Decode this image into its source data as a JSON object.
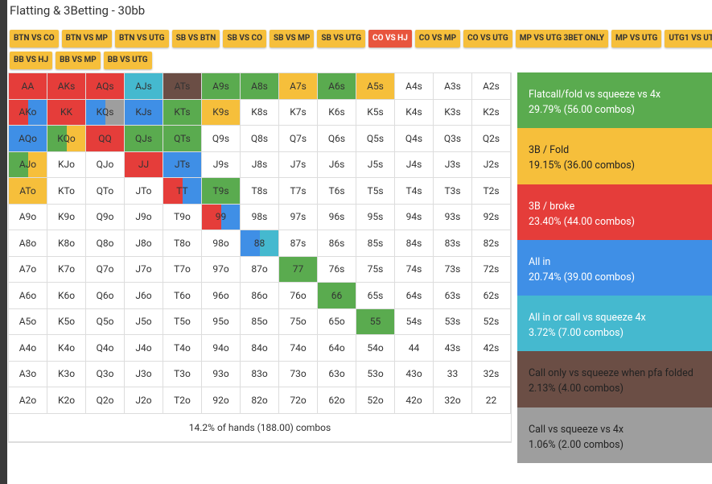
{
  "header": {
    "title": "Flatting & 3Betting - 30bb"
  },
  "tabs": {
    "active": 7,
    "rows": [
      [
        "BTN VS CO",
        "BTN VS MP",
        "BTN VS UTG",
        "SB VS BTN",
        "SB VS CO",
        "SB VS MP",
        "SB VS UTG",
        "CO VS HJ",
        "CO VS MP",
        "CO VS UTG",
        "MP VS UTG 3BET ONLY",
        "MP VS UTG",
        "UTG1 VS UTG"
      ],
      [
        "BB VS HJ",
        "BB VS MP",
        "BB VS UTG"
      ]
    ]
  },
  "legend": [
    {
      "name": "Flatcall/fold vs squeeze vs 4x",
      "stat": "29.79% (56.00 combos)",
      "color": "#5aab4f"
    },
    {
      "name": "3B / Fold",
      "stat": "19.15% (36.00 combos)",
      "color": "#f6bf3b"
    },
    {
      "name": "3B / broke",
      "stat": "23.40% (44.00 combos)",
      "color": "#e53d3a"
    },
    {
      "name": "All in",
      "stat": "20.74% (39.00 combos)",
      "color": "#3f8fe6"
    },
    {
      "name": "All in or call vs squeeze 4x",
      "stat": "3.72% (7.00 combos)",
      "color": "#45b9cf"
    },
    {
      "name": "Call only vs squeeze when pfa folded",
      "stat": "2.13% (4.00 combos)",
      "color": "#6b4e45"
    },
    {
      "name": "Call vs squeeze vs 4x",
      "stat": "1.06% (2.00 combos)",
      "color": "#9e9e9e"
    }
  ],
  "grid": {
    "footer": "14.2% of hands (188.00) combos",
    "cells": [
      [
        {
          "label": "AA",
          "fill": [
            2
          ]
        },
        {
          "label": "AKs",
          "fill": [
            2
          ]
        },
        {
          "label": "AQs",
          "fill": [
            2
          ]
        },
        {
          "label": "AJs",
          "fill": [
            4
          ]
        },
        {
          "label": "ATs",
          "fill": [
            5
          ]
        },
        {
          "label": "A9s",
          "fill": [
            0
          ]
        },
        {
          "label": "A8s",
          "fill": [
            0
          ]
        },
        {
          "label": "A7s",
          "fill": [
            1
          ]
        },
        {
          "label": "A6s",
          "fill": [
            0
          ]
        },
        {
          "label": "A5s",
          "fill": [
            1
          ]
        },
        {
          "label": "A4s"
        },
        {
          "label": "A3s"
        },
        {
          "label": "A2s"
        }
      ],
      [
        {
          "label": "AKo",
          "fill": [
            2,
            3
          ]
        },
        {
          "label": "KK",
          "fill": [
            2
          ]
        },
        {
          "label": "KQs",
          "fill": [
            3,
            6
          ]
        },
        {
          "label": "KJs",
          "fill": [
            3
          ]
        },
        {
          "label": "KTs",
          "fill": [
            0
          ]
        },
        {
          "label": "K9s",
          "fill": [
            1
          ]
        },
        {
          "label": "K8s"
        },
        {
          "label": "K7s"
        },
        {
          "label": "K6s"
        },
        {
          "label": "K5s"
        },
        {
          "label": "K4s"
        },
        {
          "label": "K3s"
        },
        {
          "label": "K2s"
        }
      ],
      [
        {
          "label": "AQo",
          "fill": [
            3
          ]
        },
        {
          "label": "KQo",
          "fill": [
            0,
            1
          ]
        },
        {
          "label": "QQ",
          "fill": [
            2
          ]
        },
        {
          "label": "QJs",
          "fill": [
            0
          ]
        },
        {
          "label": "QTs",
          "fill": [
            0
          ]
        },
        {
          "label": "Q9s"
        },
        {
          "label": "Q8s"
        },
        {
          "label": "Q7s"
        },
        {
          "label": "Q6s"
        },
        {
          "label": "Q5s"
        },
        {
          "label": "Q4s"
        },
        {
          "label": "Q3s"
        },
        {
          "label": "Q2s"
        }
      ],
      [
        {
          "label": "AJo",
          "fill": [
            0,
            1
          ]
        },
        {
          "label": "KJo"
        },
        {
          "label": "QJo"
        },
        {
          "label": "JJ",
          "fill": [
            2
          ]
        },
        {
          "label": "JTs",
          "fill": [
            3
          ]
        },
        {
          "label": "J9s"
        },
        {
          "label": "J8s"
        },
        {
          "label": "J7s"
        },
        {
          "label": "J6s"
        },
        {
          "label": "J5s"
        },
        {
          "label": "J4s"
        },
        {
          "label": "J3s"
        },
        {
          "label": "J2s"
        }
      ],
      [
        {
          "label": "ATo",
          "fill": [
            1
          ]
        },
        {
          "label": "KTo"
        },
        {
          "label": "QTo"
        },
        {
          "label": "JTo"
        },
        {
          "label": "TT",
          "fill": [
            2,
            3
          ]
        },
        {
          "label": "T9s",
          "fill": [
            0
          ]
        },
        {
          "label": "T8s"
        },
        {
          "label": "T7s"
        },
        {
          "label": "T6s"
        },
        {
          "label": "T5s"
        },
        {
          "label": "T4s"
        },
        {
          "label": "T3s"
        },
        {
          "label": "T2s"
        }
      ],
      [
        {
          "label": "A9o"
        },
        {
          "label": "K9o"
        },
        {
          "label": "Q9o"
        },
        {
          "label": "J9o"
        },
        {
          "label": "T9o"
        },
        {
          "label": "99",
          "fill": [
            2,
            3
          ]
        },
        {
          "label": "98s"
        },
        {
          "label": "97s"
        },
        {
          "label": "96s"
        },
        {
          "label": "95s"
        },
        {
          "label": "94s"
        },
        {
          "label": "93s"
        },
        {
          "label": "92s"
        }
      ],
      [
        {
          "label": "A8o"
        },
        {
          "label": "K8o"
        },
        {
          "label": "Q8o"
        },
        {
          "label": "J8o"
        },
        {
          "label": "T8o"
        },
        {
          "label": "98o"
        },
        {
          "label": "88",
          "fill": [
            3,
            4
          ]
        },
        {
          "label": "87s"
        },
        {
          "label": "86s"
        },
        {
          "label": "85s"
        },
        {
          "label": "84s"
        },
        {
          "label": "83s"
        },
        {
          "label": "82s"
        }
      ],
      [
        {
          "label": "A7o"
        },
        {
          "label": "K7o"
        },
        {
          "label": "Q7o"
        },
        {
          "label": "J7o"
        },
        {
          "label": "T7o"
        },
        {
          "label": "97o"
        },
        {
          "label": "87o"
        },
        {
          "label": "77",
          "fill": [
            0
          ]
        },
        {
          "label": "76s"
        },
        {
          "label": "75s"
        },
        {
          "label": "74s"
        },
        {
          "label": "73s"
        },
        {
          "label": "72s"
        }
      ],
      [
        {
          "label": "A6o"
        },
        {
          "label": "K6o"
        },
        {
          "label": "Q6o"
        },
        {
          "label": "J6o"
        },
        {
          "label": "T6o"
        },
        {
          "label": "96o"
        },
        {
          "label": "86o"
        },
        {
          "label": "76o"
        },
        {
          "label": "66",
          "fill": [
            0
          ]
        },
        {
          "label": "65s"
        },
        {
          "label": "64s"
        },
        {
          "label": "63s"
        },
        {
          "label": "62s"
        }
      ],
      [
        {
          "label": "A5o"
        },
        {
          "label": "K5o"
        },
        {
          "label": "Q5o"
        },
        {
          "label": "J5o"
        },
        {
          "label": "T5o"
        },
        {
          "label": "95o"
        },
        {
          "label": "85o"
        },
        {
          "label": "75o"
        },
        {
          "label": "65o"
        },
        {
          "label": "55",
          "fill": [
            0
          ]
        },
        {
          "label": "54s"
        },
        {
          "label": "53s"
        },
        {
          "label": "52s"
        }
      ],
      [
        {
          "label": "A4o"
        },
        {
          "label": "K4o"
        },
        {
          "label": "Q4o"
        },
        {
          "label": "J4o"
        },
        {
          "label": "T4o"
        },
        {
          "label": "94o"
        },
        {
          "label": "84o"
        },
        {
          "label": "74o"
        },
        {
          "label": "64o"
        },
        {
          "label": "54o"
        },
        {
          "label": "44"
        },
        {
          "label": "43s"
        },
        {
          "label": "42s"
        }
      ],
      [
        {
          "label": "A3o"
        },
        {
          "label": "K3o"
        },
        {
          "label": "Q3o"
        },
        {
          "label": "J3o"
        },
        {
          "label": "T3o"
        },
        {
          "label": "93o"
        },
        {
          "label": "83o"
        },
        {
          "label": "73o"
        },
        {
          "label": "63o"
        },
        {
          "label": "53o"
        },
        {
          "label": "43o"
        },
        {
          "label": "33"
        },
        {
          "label": "32s"
        }
      ],
      [
        {
          "label": "A2o"
        },
        {
          "label": "K2o"
        },
        {
          "label": "Q2o"
        },
        {
          "label": "J2o"
        },
        {
          "label": "T2o"
        },
        {
          "label": "92o"
        },
        {
          "label": "82o"
        },
        {
          "label": "72o"
        },
        {
          "label": "62o"
        },
        {
          "label": "52o"
        },
        {
          "label": "42o"
        },
        {
          "label": "32o"
        },
        {
          "label": "22"
        }
      ]
    ]
  }
}
